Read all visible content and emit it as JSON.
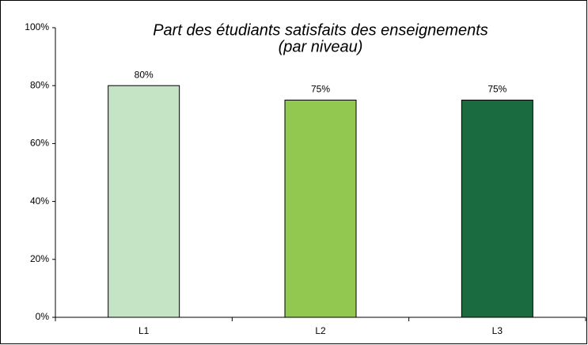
{
  "chart_data": {
    "type": "bar",
    "title": "Part des étudiants satisfaits des enseignements",
    "subtitle": "(par niveau)",
    "categories": [
      "L1",
      "L2",
      "L3"
    ],
    "values": [
      80,
      75,
      75
    ],
    "value_labels": [
      "80%",
      "75%",
      "75%"
    ],
    "colors": [
      "#c5e3c5",
      "#92c850",
      "#1a6b3f"
    ],
    "ylim": [
      0,
      100
    ],
    "yticks": [
      {
        "value": 0,
        "label": "0%"
      },
      {
        "value": 20,
        "label": "20%"
      },
      {
        "value": 40,
        "label": "40%"
      },
      {
        "value": 60,
        "label": "60%"
      },
      {
        "value": 80,
        "label": "80%"
      },
      {
        "value": 100,
        "label": "100%"
      }
    ],
    "grid": false
  }
}
